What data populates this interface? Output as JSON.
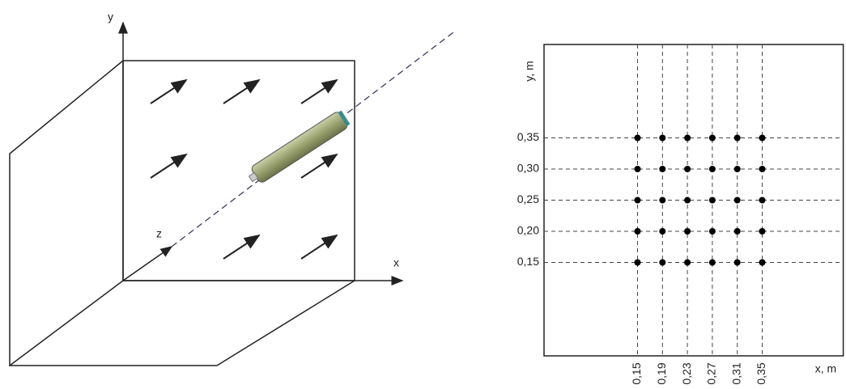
{
  "diagram": {
    "axes": {
      "x": "x",
      "y": "y",
      "z": "z"
    }
  },
  "chart_data": {
    "type": "scatter",
    "x_label": "x, m",
    "y_label": "y, m",
    "xlim": [
      0,
      0.48
    ],
    "ylim": [
      0,
      0.5
    ],
    "xticks": [
      {
        "value": 0.15,
        "label": "0,15"
      },
      {
        "value": 0.19,
        "label": "0,19"
      },
      {
        "value": 0.23,
        "label": "0,23"
      },
      {
        "value": 0.27,
        "label": "0,27"
      },
      {
        "value": 0.31,
        "label": "0,31"
      },
      {
        "value": 0.35,
        "label": "0,35"
      }
    ],
    "yticks": [
      {
        "value": 0.15,
        "label": "0,15"
      },
      {
        "value": 0.2,
        "label": "0,20"
      },
      {
        "value": 0.25,
        "label": "0,25"
      },
      {
        "value": 0.3,
        "label": "0,30"
      },
      {
        "value": 0.35,
        "label": "0,35"
      }
    ],
    "grid": true,
    "color": "#000000",
    "x": [
      0.15,
      0.19,
      0.23,
      0.27,
      0.31,
      0.35,
      0.15,
      0.19,
      0.23,
      0.27,
      0.31,
      0.35,
      0.15,
      0.19,
      0.23,
      0.27,
      0.31,
      0.35,
      0.15,
      0.19,
      0.23,
      0.27,
      0.31,
      0.35,
      0.15,
      0.19,
      0.23,
      0.27,
      0.31,
      0.35
    ],
    "y": [
      0.15,
      0.15,
      0.15,
      0.15,
      0.15,
      0.15,
      0.2,
      0.2,
      0.2,
      0.2,
      0.2,
      0.2,
      0.25,
      0.25,
      0.25,
      0.25,
      0.25,
      0.25,
      0.3,
      0.3,
      0.3,
      0.3,
      0.3,
      0.3,
      0.35,
      0.35,
      0.35,
      0.35,
      0.35,
      0.35
    ]
  }
}
